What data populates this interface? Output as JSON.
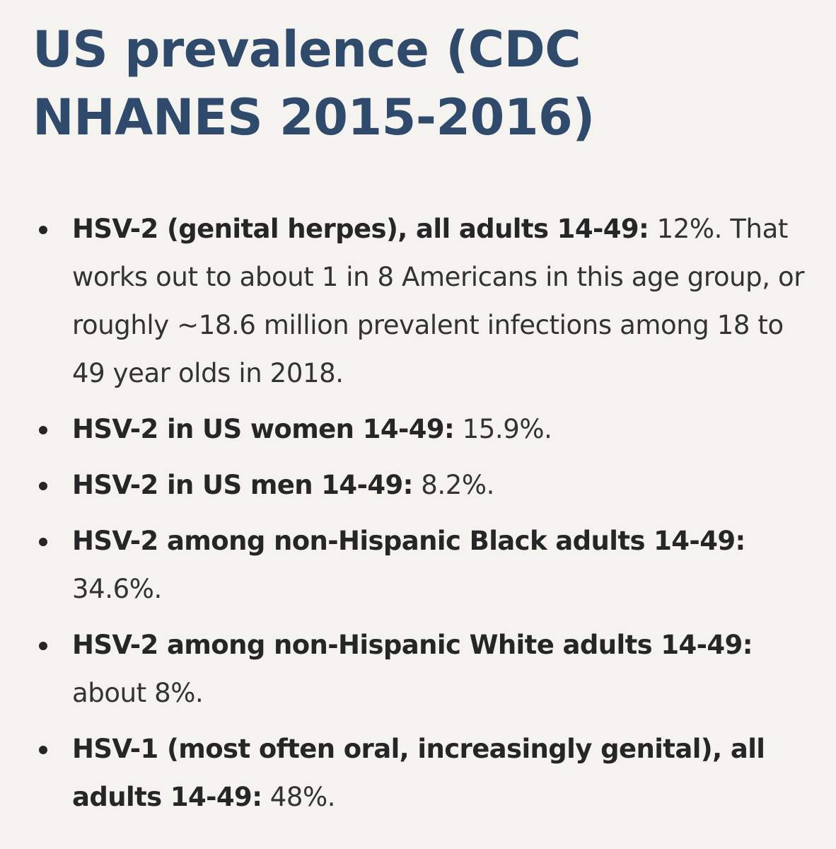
{
  "heading": "US prevalence (CDC NHANES 2015-2016)",
  "items": [
    {
      "label": "HSV-2 (genital herpes), all adults 14-49:",
      "text": " 12%. That works out to about 1 in 8 Americans in this age group, or roughly ~18.6 million prevalent infections among 18 to 49 year olds in 2018."
    },
    {
      "label": "HSV-2 in US women 14-49:",
      "text": " 15.9%."
    },
    {
      "label": "HSV-2 in US men 14-49:",
      "text": " 8.2%."
    },
    {
      "label": "HSV-2 among non-Hispanic Black adults 14-49:",
      "text": " 34.6%."
    },
    {
      "label": "HSV-2 among non-Hispanic White adults 14-49:",
      "text": " about 8%."
    },
    {
      "label": "HSV-1 (most often oral, increasingly genital), all adults 14-49:",
      "text": " 48%."
    }
  ]
}
